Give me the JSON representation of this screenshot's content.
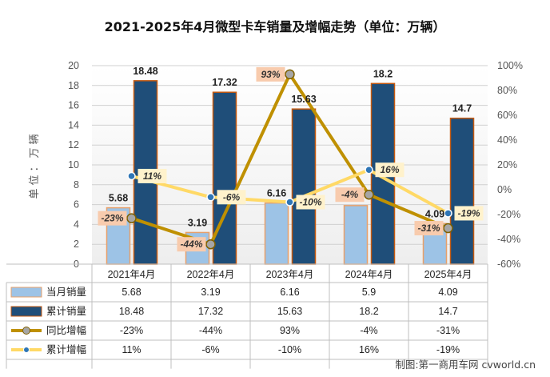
{
  "title": "2021-2025年4月微型卡车销量及增幅走势（单位：万辆）",
  "credit": "制图:第一商用车网 cvworld.cn",
  "chart_data": {
    "type": "bar",
    "categories": [
      "2021年4月",
      "2022年4月",
      "2023年4月",
      "2024年4月",
      "2025年4月"
    ],
    "ylabel": "单位：万辆",
    "ylim": [
      0,
      20
    ],
    "y2lim": [
      -60,
      100
    ],
    "yticks": [
      "0",
      "2",
      "4",
      "6",
      "8",
      "10",
      "12",
      "14",
      "16",
      "18",
      "20"
    ],
    "y2ticks": [
      "-60%",
      "-40%",
      "-20%",
      "0%",
      "20%",
      "40%",
      "60%",
      "80%",
      "100%"
    ],
    "series": [
      {
        "name": "当月销量",
        "kind": "bar",
        "color": "#9dc3e6",
        "values": [
          5.68,
          3.19,
          6.16,
          5.9,
          4.09
        ],
        "labels": [
          "5.68",
          "3.19",
          "6.16",
          "5.9",
          "4.09"
        ]
      },
      {
        "name": "累计销量",
        "kind": "bar",
        "color": "#1f4e79",
        "values": [
          18.48,
          17.32,
          15.63,
          18.2,
          14.7
        ],
        "labels": [
          "18.48",
          "17.32",
          "15.63",
          "18.2",
          "14.7"
        ]
      },
      {
        "name": "同比增幅",
        "kind": "line",
        "axis": "right",
        "color": "#bf9000",
        "values": [
          -23,
          -44,
          93,
          -4,
          -31
        ],
        "labels": [
          "-23%",
          "-44%",
          "93%",
          "-4%",
          "-31%"
        ]
      },
      {
        "name": "累计增幅",
        "kind": "line",
        "axis": "right",
        "color": "#ffd966",
        "values": [
          11,
          -6,
          -10,
          16,
          -19
        ],
        "labels": [
          "11%",
          "-6%",
          "-10%",
          "16%",
          "-19%"
        ]
      }
    ],
    "grid": true
  }
}
